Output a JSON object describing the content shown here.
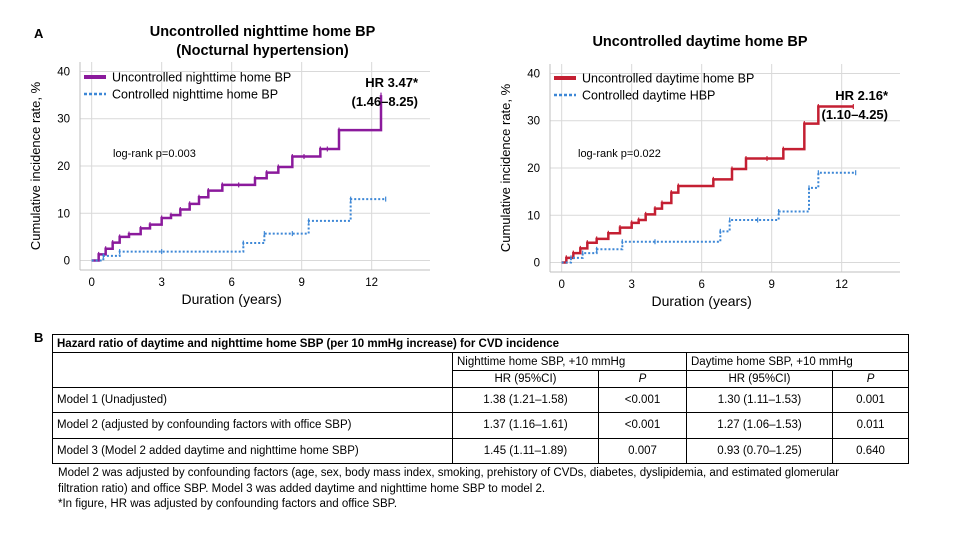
{
  "panel_a_label": "A",
  "panel_b_label": "B",
  "chart_data": [
    {
      "type": "line",
      "title": "Uncontrolled nighttime home BP\n(Nocturnal hypertension)",
      "xlabel": "Duration (years)",
      "ylabel": "Cumulative incidence rate, %",
      "xlim": [
        -0.5,
        14.5
      ],
      "ylim": [
        -2,
        42
      ],
      "xticks": [
        0,
        3,
        6,
        9,
        12
      ],
      "yticks": [
        0,
        10,
        20,
        30,
        40
      ],
      "grid": true,
      "legend_position": "top-left",
      "annotation_hr": "HR 3.47*",
      "annotation_ci": "(1.46–8.25)",
      "annotation_logrank": "log-rank p=0.003",
      "series": [
        {
          "name": "Uncontrolled nighttime home BP",
          "color": "#8b1a9c",
          "style": "solid",
          "step": true,
          "x": [
            0,
            0.3,
            0.6,
            0.9,
            1.2,
            1.6,
            2.1,
            2.5,
            3.0,
            3.4,
            3.8,
            4.2,
            4.6,
            5.0,
            5.6,
            6.3,
            7.0,
            7.5,
            8.0,
            8.6,
            9.1,
            9.8,
            10.1,
            10.6,
            12.4
          ],
          "y": [
            0,
            1.3,
            2.5,
            3.8,
            5.0,
            5.6,
            6.8,
            7.6,
            9.0,
            9.6,
            10.8,
            12.0,
            13.4,
            14.8,
            16.0,
            16.0,
            17.4,
            18.6,
            19.8,
            22.0,
            22.0,
            23.6,
            23.6,
            27.6,
            35.0
          ]
        },
        {
          "name": "Controlled nighttime home BP",
          "color": "#3d87d6",
          "style": "dotted",
          "step": true,
          "x": [
            0,
            0.5,
            1.2,
            3.0,
            6.5,
            7.4,
            8.6,
            9.3,
            11.1,
            12.6
          ],
          "y": [
            0,
            1.0,
            1.9,
            1.9,
            3.7,
            5.7,
            5.7,
            8.4,
            13.0,
            13.0
          ]
        }
      ]
    },
    {
      "type": "line",
      "title": "Uncontrolled daytime home BP",
      "xlabel": "Duration (years)",
      "ylabel": "Cumulative incidence rate, %",
      "xlim": [
        -0.5,
        14.5
      ],
      "ylim": [
        -2,
        42
      ],
      "xticks": [
        0,
        3,
        6,
        9,
        12
      ],
      "yticks": [
        0,
        10,
        20,
        30,
        40
      ],
      "grid": true,
      "legend_position": "top-left",
      "annotation_hr": "HR 2.16*",
      "annotation_ci": "(1.10–4.25)",
      "annotation_logrank": "log-rank p=0.022",
      "series": [
        {
          "name": "Uncontrolled daytime home BP",
          "color": "#c41f32",
          "style": "solid",
          "step": true,
          "x": [
            0,
            0.2,
            0.5,
            0.8,
            1.1,
            1.5,
            2.0,
            2.5,
            3.0,
            3.3,
            3.6,
            4.0,
            4.3,
            4.7,
            5.0,
            6.5,
            7.3,
            7.9,
            8.8,
            9.5,
            10.4,
            11.0,
            12.5
          ],
          "y": [
            0,
            1.0,
            2.0,
            3.0,
            4.2,
            5.0,
            6.2,
            7.4,
            8.4,
            9.0,
            10.2,
            11.4,
            12.6,
            14.8,
            16.2,
            17.6,
            19.8,
            22.0,
            22.0,
            24.0,
            29.4,
            33.0,
            33.0
          ]
        },
        {
          "name": "Controlled daytime HBP",
          "color": "#3d87d6",
          "style": "dotted",
          "step": true,
          "x": [
            0,
            0.4,
            0.9,
            1.5,
            2.6,
            4.0,
            6.8,
            7.2,
            8.4,
            9.3,
            10.6,
            11.0,
            12.6
          ],
          "y": [
            0,
            1.0,
            2.0,
            2.8,
            4.4,
            4.4,
            6.6,
            9.0,
            9.0,
            10.8,
            15.8,
            19.0,
            19.0
          ]
        }
      ]
    }
  ],
  "table": {
    "title": "Hazard ratio of daytime and nighttime home SBP (per 10 mmHg increase) for CVD incidence",
    "group_night": "Nighttime home SBP, +10 mmHg",
    "group_day": "Daytime home SBP, +10 mmHg",
    "col_hr": "HR (95%CI)",
    "col_p": "P",
    "rows": [
      {
        "label": "Model 1 (Unadjusted)",
        "night_hr": "1.38 (1.21–1.58)",
        "night_p": "<0.001",
        "day_hr": "1.30 (1.11–1.53)",
        "day_p": "0.001"
      },
      {
        "label": "Model 2 (adjusted by confounding factors with office SBP)",
        "night_hr": "1.37 (1.16–1.61)",
        "night_p": "<0.001",
        "day_hr": "1.27 (1.06–1.53)",
        "day_p": "0.011"
      },
      {
        "label": "Model 3 (Model 2 added daytime and nighttime home SBP)",
        "night_hr": "1.45 (1.11–1.89)",
        "night_p": "0.007",
        "day_hr": "0.93 (0.70–1.25)",
        "day_p": "0.640"
      }
    ]
  },
  "notes": {
    "line1": "Model 2 was adjusted by confounding factors (age, sex, body mass index, smoking, prehistory of CVDs, diabetes, dyslipidemia, and estimated glomerular",
    "line2": "filtration ratio) and office SBP. Model 3 was added daytime and nighttime home SBP to model 2.",
    "line3": "*In figure, HR was adjusted by confounding factors and office SBP."
  }
}
